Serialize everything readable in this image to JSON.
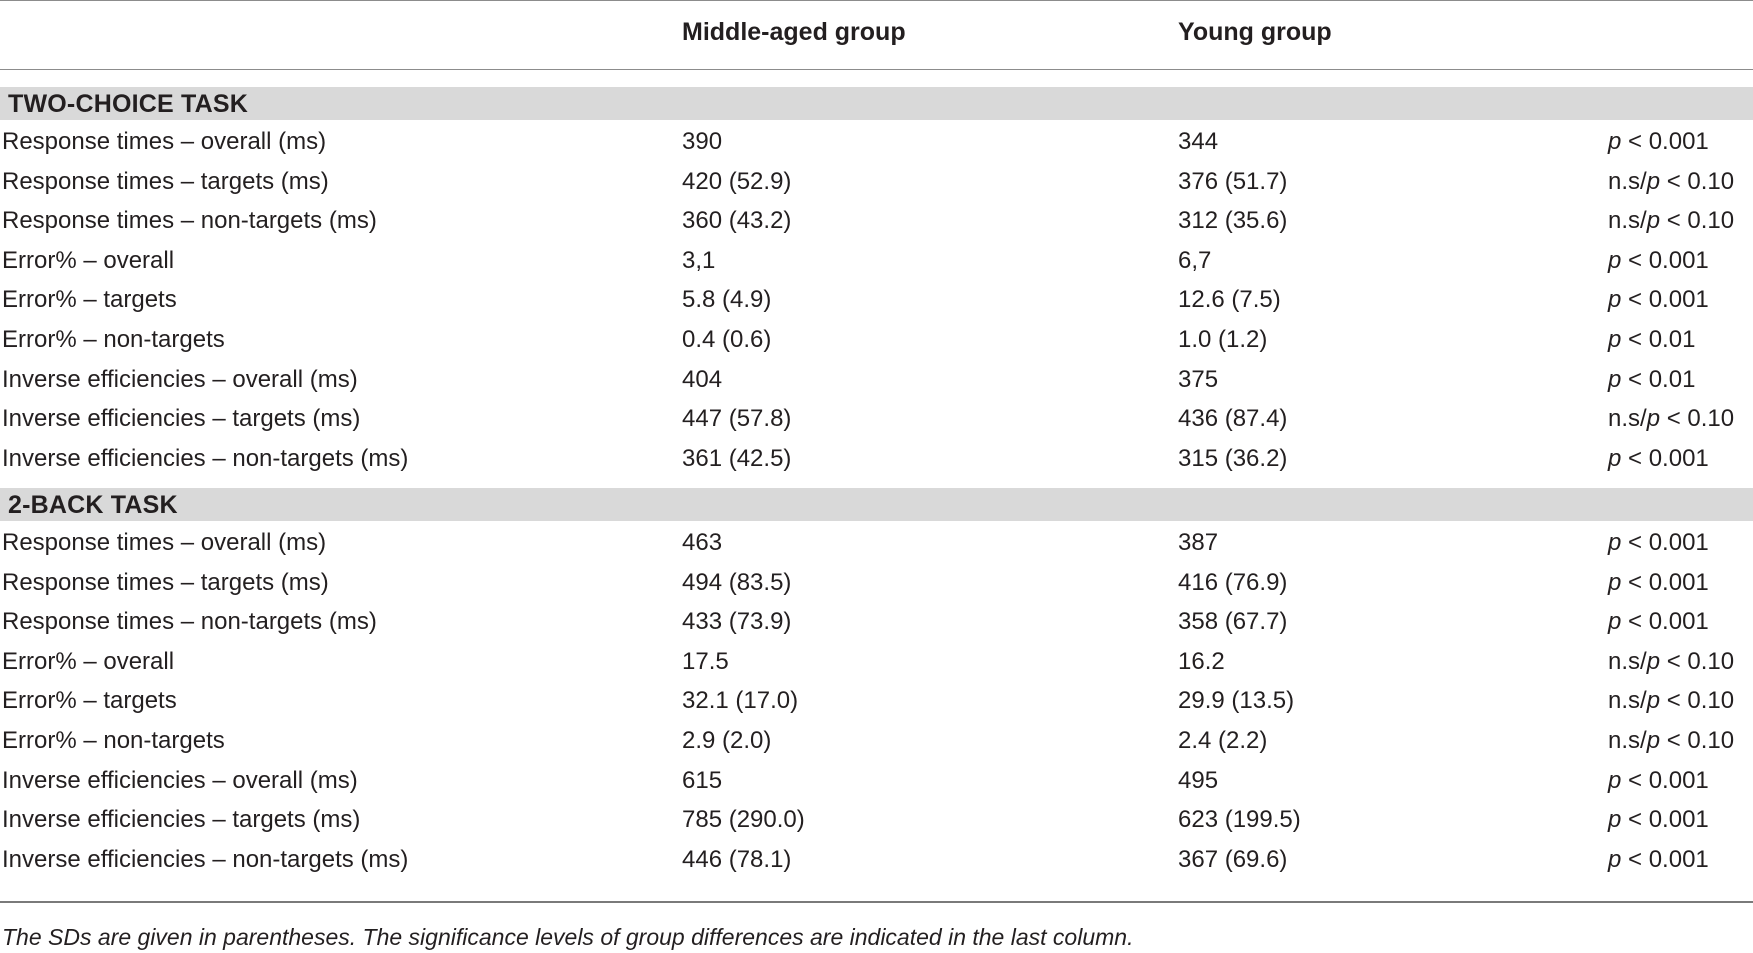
{
  "table": {
    "columns": {
      "label": "",
      "middle_aged": "Middle-aged group",
      "young": "Young group",
      "significance": ""
    },
    "sections": [
      {
        "title": "TWO-CHOICE TASK",
        "rows": [
          {
            "label": "Response times – overall (ms)",
            "middle_aged": "390",
            "young": "344",
            "sig_prefix": "",
            "sig_p": "p",
            "sig_rest": " < 0.001"
          },
          {
            "label": "Response times – targets (ms)",
            "middle_aged": "420 (52.9)",
            "young": "376 (51.7)",
            "sig_prefix": "n.s/",
            "sig_p": "p",
            "sig_rest": " < 0.10"
          },
          {
            "label": "Response times – non-targets (ms)",
            "middle_aged": "360 (43.2)",
            "young": "312 (35.6)",
            "sig_prefix": "n.s/",
            "sig_p": "p",
            "sig_rest": " < 0.10"
          },
          {
            "label": "Error% – overall",
            "middle_aged": "3,1",
            "young": "6,7",
            "sig_prefix": "",
            "sig_p": "p",
            "sig_rest": " < 0.001"
          },
          {
            "label": "Error% – targets",
            "middle_aged": "5.8 (4.9)",
            "young": "12.6 (7.5)",
            "sig_prefix": "",
            "sig_p": "p",
            "sig_rest": " < 0.001"
          },
          {
            "label": "Error% – non-targets",
            "middle_aged": "0.4 (0.6)",
            "young": "1.0 (1.2)",
            "sig_prefix": "",
            "sig_p": "p",
            "sig_rest": " < 0.01"
          },
          {
            "label": "Inverse efficiencies – overall (ms)",
            "middle_aged": "404",
            "young": "375",
            "sig_prefix": "",
            "sig_p": "p",
            "sig_rest": " < 0.01"
          },
          {
            "label": "Inverse efficiencies – targets (ms)",
            "middle_aged": "447 (57.8)",
            "young": "436 (87.4)",
            "sig_prefix": "n.s/",
            "sig_p": "p",
            "sig_rest": " < 0.10"
          },
          {
            "label": "Inverse efficiencies – non-targets (ms)",
            "middle_aged": "361 (42.5)",
            "young": "315 (36.2)",
            "sig_prefix": "",
            "sig_p": "p",
            "sig_rest": " < 0.001"
          }
        ]
      },
      {
        "title": "2-BACK TASK",
        "rows": [
          {
            "label": "Response times – overall (ms)",
            "middle_aged": "463",
            "young": "387",
            "sig_prefix": "",
            "sig_p": "p",
            "sig_rest": " < 0.001"
          },
          {
            "label": "Response times – targets (ms)",
            "middle_aged": "494 (83.5)",
            "young": "416 (76.9)",
            "sig_prefix": "",
            "sig_p": "p",
            "sig_rest": " < 0.001"
          },
          {
            "label": "Response times – non-targets (ms)",
            "middle_aged": "433 (73.9)",
            "young": "358 (67.7)",
            "sig_prefix": "",
            "sig_p": "p",
            "sig_rest": " < 0.001"
          },
          {
            "label": "Error% – overall",
            "middle_aged": "17.5",
            "young": "16.2",
            "sig_prefix": "n.s/",
            "sig_p": "p",
            "sig_rest": " < 0.10"
          },
          {
            "label": "Error% – targets",
            "middle_aged": "32.1 (17.0)",
            "young": "29.9 (13.5)",
            "sig_prefix": "n.s/",
            "sig_p": "p",
            "sig_rest": " < 0.10"
          },
          {
            "label": "Error% – non-targets",
            "middle_aged": "2.9 (2.0)",
            "young": "2.4 (2.2)",
            "sig_prefix": "n.s/",
            "sig_p": "p",
            "sig_rest": " < 0.10"
          },
          {
            "label": "Inverse efficiencies – overall (ms)",
            "middle_aged": "615",
            "young": "495",
            "sig_prefix": "",
            "sig_p": "p",
            "sig_rest": " < 0.001"
          },
          {
            "label": "Inverse efficiencies – targets (ms)",
            "middle_aged": "785 (290.0)",
            "young": "623 (199.5)",
            "sig_prefix": "",
            "sig_p": "p",
            "sig_rest": " < 0.001"
          },
          {
            "label": "Inverse efficiencies – non-targets (ms)",
            "middle_aged": "446 (78.1)",
            "young": "367 (69.6)",
            "sig_prefix": "",
            "sig_p": "p",
            "sig_rest": " < 0.001"
          }
        ]
      }
    ],
    "footnote": "The SDs are given in parentheses. The significance levels of group differences are indicated in the last column."
  }
}
